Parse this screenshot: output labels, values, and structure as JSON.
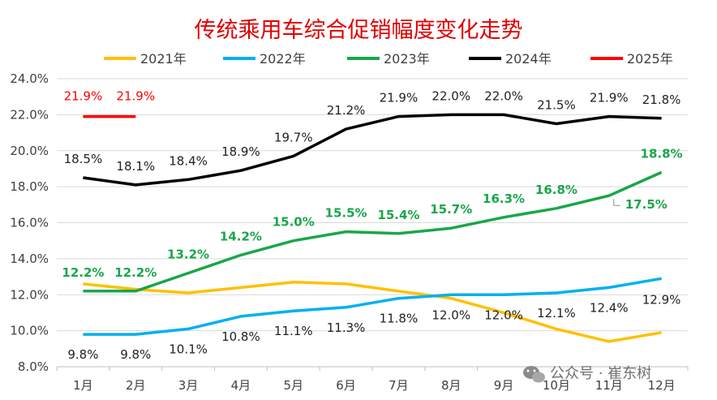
{
  "chart_data": {
    "type": "line",
    "title": "传统乘用车综合促销幅度变化走势",
    "categories": [
      "1月",
      "2月",
      "3月",
      "4月",
      "5月",
      "6月",
      "7月",
      "8月",
      "9月",
      "10月",
      "11月",
      "12月"
    ],
    "ylim": [
      8.0,
      24.0
    ],
    "yticks": [
      "8.0%",
      "10.0%",
      "12.0%",
      "14.0%",
      "16.0%",
      "18.0%",
      "20.0%",
      "22.0%",
      "24.0%"
    ],
    "legend_position": "top",
    "grid": true,
    "series": [
      {
        "name": "2021年",
        "color": "#ffc000",
        "values": [
          12.6,
          12.3,
          12.1,
          12.4,
          12.7,
          12.6,
          12.2,
          11.8,
          11.0,
          10.1,
          9.4,
          9.9
        ],
        "labels": [
          null,
          null,
          null,
          null,
          null,
          null,
          null,
          null,
          null,
          null,
          null,
          null
        ]
      },
      {
        "name": "2022年",
        "color": "#00b0f0",
        "values": [
          9.8,
          9.8,
          10.1,
          10.8,
          11.1,
          11.3,
          11.8,
          12.0,
          12.0,
          12.1,
          12.4,
          12.9
        ],
        "labels": [
          "9.8%",
          "9.8%",
          "10.1%",
          "10.8%",
          "11.1%",
          "11.3%",
          "11.8%",
          "12.0%",
          "12.0%",
          "12.1%",
          "12.4%",
          "12.9%"
        ]
      },
      {
        "name": "2023年",
        "color": "#1aa64a",
        "values": [
          12.2,
          12.2,
          13.2,
          14.2,
          15.0,
          15.5,
          15.4,
          15.7,
          16.3,
          16.8,
          17.5,
          18.8
        ],
        "labels": [
          "12.2%",
          "12.2%",
          "13.2%",
          "14.2%",
          "15.0%",
          "15.5%",
          "15.4%",
          "15.7%",
          "16.3%",
          "16.8%",
          "17.5%",
          "18.8%"
        ]
      },
      {
        "name": "2024年",
        "color": "#000000",
        "values": [
          18.5,
          18.1,
          18.4,
          18.9,
          19.7,
          21.2,
          21.9,
          22.0,
          22.0,
          21.5,
          21.9,
          21.8
        ],
        "labels": [
          "18.5%",
          "18.1%",
          "18.4%",
          "18.9%",
          "19.7%",
          "21.2%",
          "21.9%",
          "22.0%",
          "22.0%",
          "21.5%",
          "21.9%",
          "21.8%"
        ]
      },
      {
        "name": "2025年",
        "color": "#ff0000",
        "values": [
          21.9,
          21.9,
          null,
          null,
          null,
          null,
          null,
          null,
          null,
          null,
          null,
          null
        ],
        "labels": [
          "21.9%",
          "21.9%",
          null,
          null,
          null,
          null,
          null,
          null,
          null,
          null,
          null,
          null
        ]
      }
    ]
  },
  "watermark": {
    "text": "公众号 · 崔东树",
    "icon": "wechat-icon"
  }
}
